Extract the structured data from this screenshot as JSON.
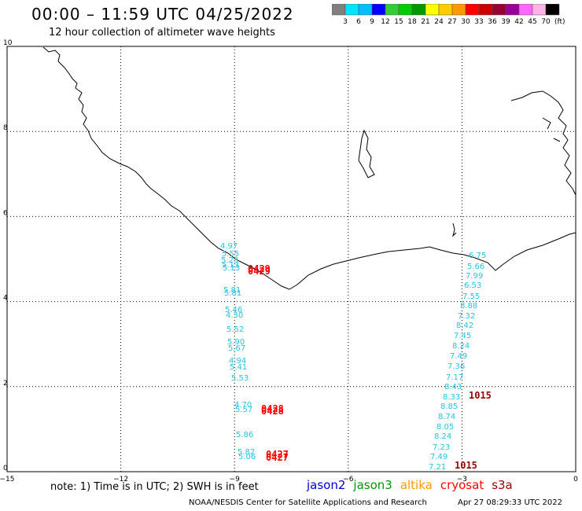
{
  "header": {
    "title": "00:00 – 11:59 UTC 04/25/2022",
    "subtitle": "12 hour collection of altimeter wave heights"
  },
  "colorbar": {
    "labels": [
      "3",
      "6",
      "9",
      "12",
      "15",
      "18",
      "21",
      "24",
      "27",
      "30",
      "33",
      "36",
      "39",
      "42",
      "45",
      "70"
    ],
    "unit": "(ft)",
    "colors": [
      "#808080",
      "#00e5ff",
      "#00bfff",
      "#0000ff",
      "#33cc33",
      "#00cc00",
      "#009900",
      "#ffff00",
      "#ffcc00",
      "#ff9900",
      "#ff0000",
      "#cc0000",
      "#990033",
      "#990099",
      "#ff66ff",
      "#ffb3e6",
      "#000000"
    ]
  },
  "axes": {
    "x_ticks": [
      "−15",
      "−12",
      "−9",
      "−6",
      "−3",
      "0"
    ],
    "y_ticks": [
      "0",
      "2",
      "4",
      "6",
      "8",
      "10"
    ]
  },
  "observations": [
    {
      "track": "west",
      "values": [
        "4.97",
        "5.55",
        "5.23",
        "5.13",
        "5.13",
        "5.81",
        "5.81",
        "5.46",
        "4.30",
        "5.52",
        "5.90",
        "5.67",
        "4.94",
        "5.41",
        "5.53",
        "4.70",
        "5.57",
        "5.86",
        "5.82",
        "5.06"
      ]
    },
    {
      "track": "east",
      "values": [
        "6.75",
        "5.66",
        "7.99",
        "6.53",
        "7.55",
        "8.88",
        "7.32",
        "8.42",
        "7.45",
        "8.24",
        "7.49",
        "7.36",
        "7.17",
        "8.43",
        "8.33",
        "8.85",
        "8.74",
        "8.05",
        "8.24",
        "7.23",
        "7.49",
        "7.21"
      ]
    }
  ],
  "time_labels": [
    "0429",
    "0429",
    "0428",
    "0428",
    "0427",
    "0427",
    "1015",
    "1015"
  ],
  "note": "note: 1) Time is in UTC; 2) SWH is in feet",
  "satellites": [
    {
      "name": "jason2",
      "color": "#0000cc"
    },
    {
      "name": "jason3",
      "color": "#009900"
    },
    {
      "name": "altika",
      "color": "#ff9900"
    },
    {
      "name": "cryosat",
      "color": "#ff0000"
    },
    {
      "name": "s3a",
      "color": "#990000"
    }
  ],
  "footer": {
    "credit": "NOAA/NESDIS Center for Satellite Applications and Research",
    "timestamp": "Apr 27 08:29:33 UTC 2022"
  }
}
